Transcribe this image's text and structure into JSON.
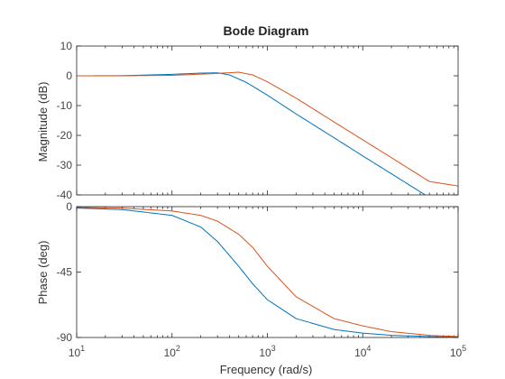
{
  "chart_data": {
    "type": "line",
    "title": "Bode Diagram",
    "xlabel": "Frequency  (rad/s)",
    "x_scale": "log",
    "xlim": [
      10,
      100000
    ],
    "x_ticks": [
      {
        "value": 10,
        "base": "10",
        "exp": "1"
      },
      {
        "value": 100,
        "base": "10",
        "exp": "2"
      },
      {
        "value": 1000,
        "base": "10",
        "exp": "3"
      },
      {
        "value": 10000,
        "base": "10",
        "exp": "4"
      },
      {
        "value": 100000,
        "base": "10",
        "exp": "5"
      }
    ],
    "series_colors": [
      "#0072BD",
      "#D95319"
    ],
    "subplots": [
      {
        "ylabel": "Magnitude (dB)",
        "ylim": [
          -40,
          10
        ],
        "y_ticks": [
          10,
          0,
          -10,
          -20,
          -30,
          -40
        ],
        "series": [
          {
            "x": [
              10,
              30,
              100,
              200,
              300,
              400,
              600,
              1000,
              2000,
              5000,
              10000,
              20000,
              50000,
              70000
            ],
            "values": [
              0,
              0.05,
              0.5,
              0.9,
              1.0,
              0.3,
              -2.2,
              -6.5,
              -12.8,
              -20.8,
              -26.9,
              -32.9,
              -40.9,
              -43.8
            ]
          },
          {
            "x": [
              10,
              30,
              100,
              200,
              300,
              500,
              700,
              1000,
              2000,
              5000,
              10000,
              20000,
              50000,
              100000
            ],
            "values": [
              0,
              0.02,
              0.15,
              0.55,
              0.8,
              1.2,
              0.3,
              -2.0,
              -7.5,
              -15.5,
              -21.5,
              -27.5,
              -35.5,
              -37.0
            ]
          }
        ]
      },
      {
        "ylabel": "Phase (deg)",
        "ylim": [
          -90,
          0
        ],
        "y_ticks": [
          0,
          -45,
          -90
        ],
        "series": [
          {
            "x": [
              10,
              30,
              100,
              200,
              300,
              500,
              700,
              1000,
              2000,
              5000,
              10000,
              20000,
              50000,
              100000
            ],
            "values": [
              -1,
              -2,
              -6,
              -14,
              -24,
              -41,
              -53,
              -64,
              -77,
              -84.5,
              -87,
              -88.5,
              -89.4,
              -89.7
            ]
          },
          {
            "x": [
              10,
              30,
              100,
              200,
              300,
              500,
              700,
              1000,
              2000,
              5000,
              10000,
              20000,
              50000,
              100000
            ],
            "values": [
              -0.5,
              -1,
              -3,
              -6,
              -10,
              -19,
              -28,
              -41,
              -62,
              -77,
              -82,
              -86,
              -88.5,
              -89.4
            ]
          }
        ]
      }
    ]
  }
}
